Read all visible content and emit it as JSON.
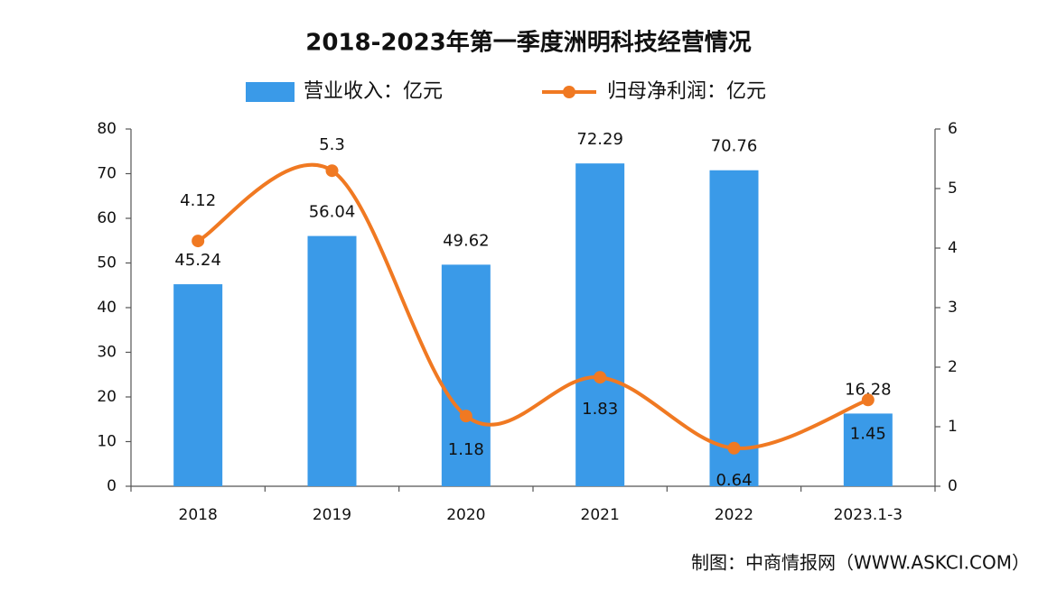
{
  "chart_data": {
    "type": "bar",
    "title": "2018-2023年第一季度洲明科技经营情况",
    "categories": [
      "2018",
      "2019",
      "2020",
      "2021",
      "2022",
      "2023.1-3"
    ],
    "series": [
      {
        "name": "营业收入：亿元",
        "type": "bar",
        "color": "#3a9ae8",
        "values": [
          45.24,
          56.04,
          49.62,
          72.29,
          70.76,
          16.28
        ]
      },
      {
        "name": "归母净利润：亿元",
        "type": "line",
        "axis": "y2",
        "color": "#f07922",
        "values": [
          4.12,
          5.3,
          1.18,
          1.83,
          0.64,
          1.45
        ]
      }
    ],
    "ylim": [
      0,
      80
    ],
    "yticks": [
      0,
      10,
      20,
      30,
      40,
      50,
      60,
      70,
      80
    ],
    "y2lim": [
      0,
      6
    ],
    "y2ticks": [
      0,
      1,
      2,
      3,
      4,
      5,
      6
    ],
    "grid": false,
    "source": "制图：中商情报网（WWW.ASKCI.COM）"
  }
}
